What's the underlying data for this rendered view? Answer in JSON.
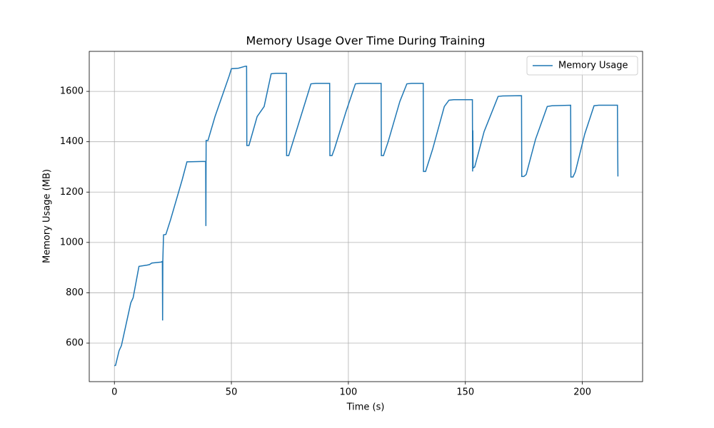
{
  "chart_data": {
    "type": "line",
    "title": "Memory Usage Over Time During Training",
    "xlabel": "Time (s)",
    "ylabel": "Memory Usage (MB)",
    "x": [
      0,
      0.5,
      2,
      3,
      7,
      8,
      10.5,
      14,
      15,
      16,
      20,
      20.5,
      20.6,
      20.7,
      21,
      22,
      24,
      29,
      31,
      39,
      39.1,
      39.2,
      40,
      43,
      49,
      50,
      53,
      56,
      56.5,
      56.6,
      57.5,
      61,
      64,
      67,
      69,
      73.5,
      73.6,
      74.5,
      75,
      80,
      84,
      86,
      92,
      92.1,
      93,
      94,
      99,
      103,
      105,
      114,
      114.1,
      115,
      117,
      122,
      125,
      127,
      132,
      132.1,
      133,
      136,
      141,
      143,
      145,
      153,
      153.1,
      153.2,
      153.3,
      154,
      156,
      158,
      164,
      166,
      174,
      174.1,
      175,
      176,
      180,
      185,
      187,
      195,
      195.1,
      196,
      197,
      201,
      205,
      207,
      215,
      215.1,
      215.2
    ],
    "series": [
      {
        "name": "Memory Usage",
        "color": "#1f77b4",
        "values": [
          510,
          512,
          570,
          590,
          760,
          780,
          905,
          910,
          912,
          918,
          922,
          925,
          690,
          930,
          1030,
          1032,
          1090,
          1250,
          1320,
          1322,
          1065,
          1405,
          1405,
          1500,
          1660,
          1690,
          1692,
          1700,
          1700,
          1385,
          1385,
          1500,
          1540,
          1670,
          1672,
          1672,
          1345,
          1345,
          1360,
          1510,
          1630,
          1632,
          1632,
          1345,
          1345,
          1370,
          1520,
          1630,
          1632,
          1632,
          1345,
          1345,
          1400,
          1560,
          1630,
          1632,
          1632,
          1282,
          1282,
          1370,
          1540,
          1565,
          1567,
          1567,
          1282,
          1445,
          1295,
          1300,
          1370,
          1440,
          1580,
          1582,
          1583,
          1262,
          1262,
          1270,
          1410,
          1540,
          1543,
          1545,
          1260,
          1260,
          1280,
          1430,
          1543,
          1545,
          1545,
          1380,
          1262
        ]
      }
    ],
    "xlim": [
      -10.75,
      225.75
    ],
    "ylim": [
      447,
      1759
    ],
    "xticks": [
      0,
      50,
      100,
      150,
      200
    ],
    "yticks": [
      600,
      800,
      1000,
      1200,
      1400,
      1600
    ],
    "grid": true,
    "legend": "upper right"
  }
}
